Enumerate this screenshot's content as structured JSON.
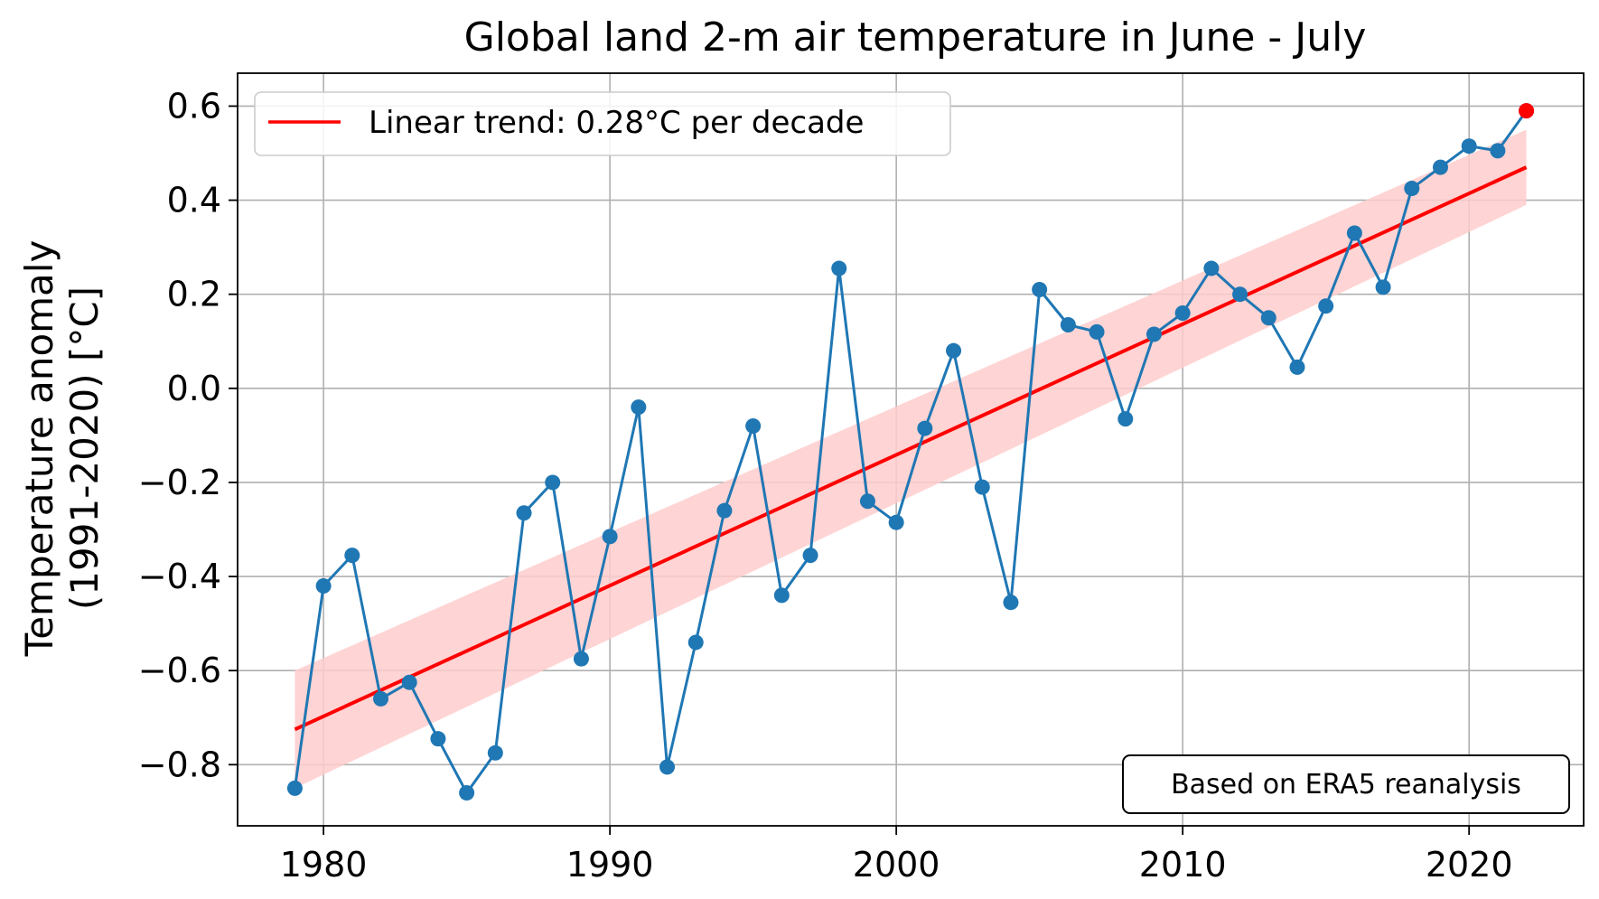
{
  "chart_data": {
    "type": "line",
    "title": "Global land 2-m air temperature in June - July",
    "ylabel_line1": "Temperature anomaly",
    "ylabel_line2": "(1991-2020) [°C]",
    "xlabel": "",
    "xlim": [
      1977,
      2024
    ],
    "ylim": [
      -0.93,
      0.67
    ],
    "xticks": [
      1980,
      1990,
      2000,
      2010,
      2020
    ],
    "yticks": [
      -0.8,
      -0.6,
      -0.4,
      -0.2,
      0.0,
      0.2,
      0.4,
      0.6
    ],
    "ytick_labels": [
      "−0.8",
      "−0.6",
      "−0.4",
      "−0.2",
      "0.0",
      "0.2",
      "0.4",
      "0.6"
    ],
    "grid": true,
    "legend_position": "upper-left",
    "series": [
      {
        "color": "#1f77b4",
        "x": [
          1979,
          1980,
          1981,
          1982,
          1983,
          1984,
          1985,
          1986,
          1987,
          1988,
          1989,
          1990,
          1991,
          1992,
          1993,
          1994,
          1995,
          1996,
          1997,
          1998,
          1999,
          2000,
          2001,
          2002,
          2003,
          2004,
          2005,
          2006,
          2007,
          2008,
          2009,
          2010,
          2011,
          2012,
          2013,
          2014,
          2015,
          2016,
          2017,
          2018,
          2019,
          2020,
          2021,
          2022
        ],
        "values": [
          -0.85,
          -0.42,
          -0.355,
          -0.66,
          -0.625,
          -0.745,
          -0.86,
          -0.775,
          -0.265,
          -0.2,
          -0.575,
          -0.315,
          -0.04,
          -0.805,
          -0.54,
          -0.26,
          -0.08,
          -0.44,
          -0.355,
          0.255,
          -0.24,
          -0.285,
          -0.085,
          0.08,
          -0.21,
          -0.455,
          0.21,
          0.135,
          0.12,
          -0.065,
          0.115,
          0.16,
          0.255,
          0.2,
          0.15,
          0.045,
          0.175,
          0.33,
          0.215,
          0.425,
          0.47,
          0.515,
          0.505,
          0.59
        ]
      }
    ],
    "highlight_point": {
      "x": 2022,
      "value": 0.59,
      "color": "#ff0000"
    },
    "trend": {
      "name": "Linear trend: 0.28°C per decade",
      "color": "#ff0000",
      "x_start": 1979,
      "x_end": 2022,
      "y_start": -0.725,
      "y_end": 0.47,
      "band_half_width_start": 0.125,
      "band_half_width_end": 0.08,
      "band_color": "#ffcccc"
    },
    "annotation": "Based on ERA5 reanalysis"
  }
}
